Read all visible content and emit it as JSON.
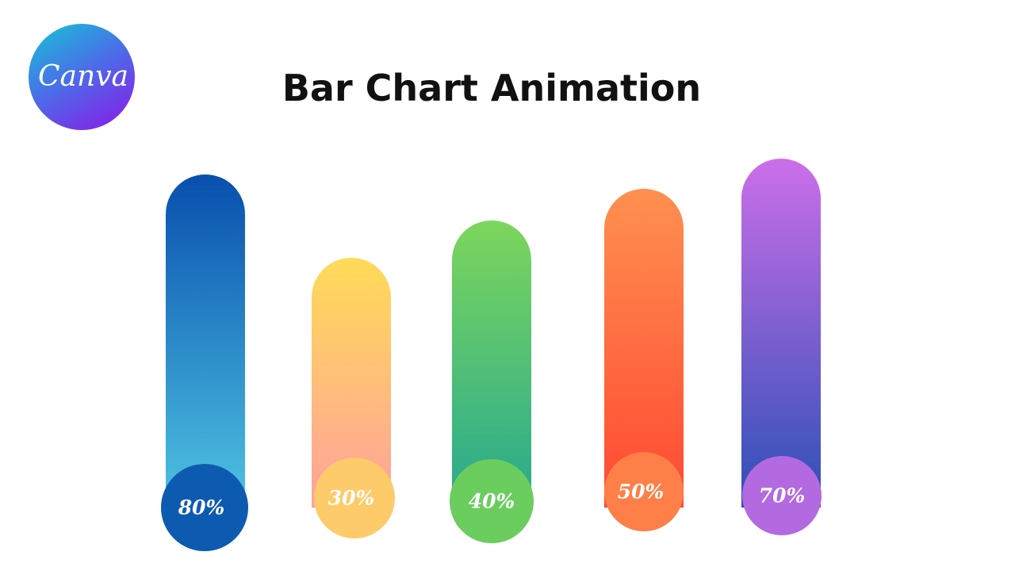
{
  "logo": {
    "text": "Canva"
  },
  "title": "Bar Chart Animation",
  "bars": [
    {
      "label": "80%"
    },
    {
      "label": "30%"
    },
    {
      "label": "40%"
    },
    {
      "label": "50%"
    },
    {
      "label": "70%"
    }
  ]
}
